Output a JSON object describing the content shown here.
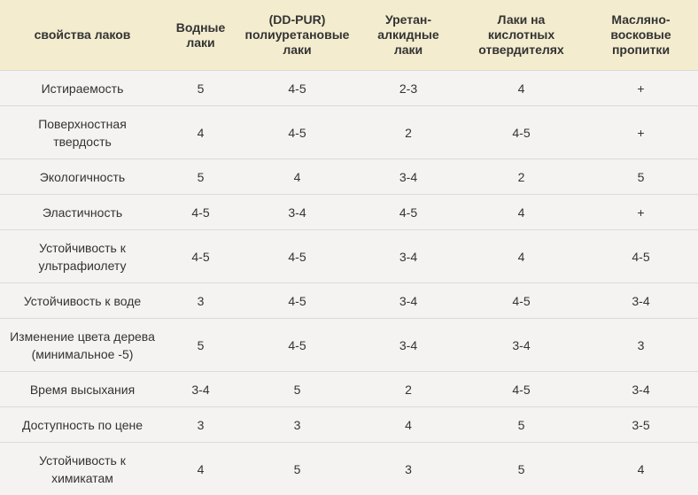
{
  "table": {
    "headers": [
      "свойства лаков",
      "Водные лаки",
      "(DD-PUR) полиуретановые лаки",
      "Уретан-алкидные лаки",
      "Лаки на кислотных отвердителях",
      "Масляно-восковые пропитки"
    ],
    "rows": [
      {
        "property": "Истираемость",
        "values": [
          "5",
          "4-5",
          "2-3",
          "4",
          "+"
        ]
      },
      {
        "property": "Поверхностная твердость",
        "values": [
          "4",
          "4-5",
          "2",
          "4-5",
          "+"
        ]
      },
      {
        "property": "Экологичность",
        "values": [
          "5",
          "4",
          "3-4",
          "2",
          "5"
        ]
      },
      {
        "property": "Эластичность",
        "values": [
          "4-5",
          "3-4",
          "4-5",
          "4",
          "+"
        ]
      },
      {
        "property": "Устойчивость к ультрафиолету",
        "values": [
          "4-5",
          "4-5",
          "3-4",
          "4",
          "4-5"
        ]
      },
      {
        "property": "Устойчивость к воде",
        "values": [
          "3",
          "4-5",
          "3-4",
          "4-5",
          "3-4"
        ]
      },
      {
        "property": "Изменение цвета дерева (минимальное -5)",
        "values": [
          "5",
          "4-5",
          "3-4",
          "3-4",
          "3"
        ]
      },
      {
        "property": "Время высыхания",
        "values": [
          "3-4",
          "5",
          "2",
          "4-5",
          "3-4"
        ]
      },
      {
        "property": "Доступность по цене",
        "values": [
          "3",
          "3",
          "4",
          "5",
          "3-5"
        ]
      },
      {
        "property": "Устойчивость к химикатам",
        "values": [
          "4",
          "5",
          "3",
          "5",
          "4"
        ]
      }
    ]
  }
}
